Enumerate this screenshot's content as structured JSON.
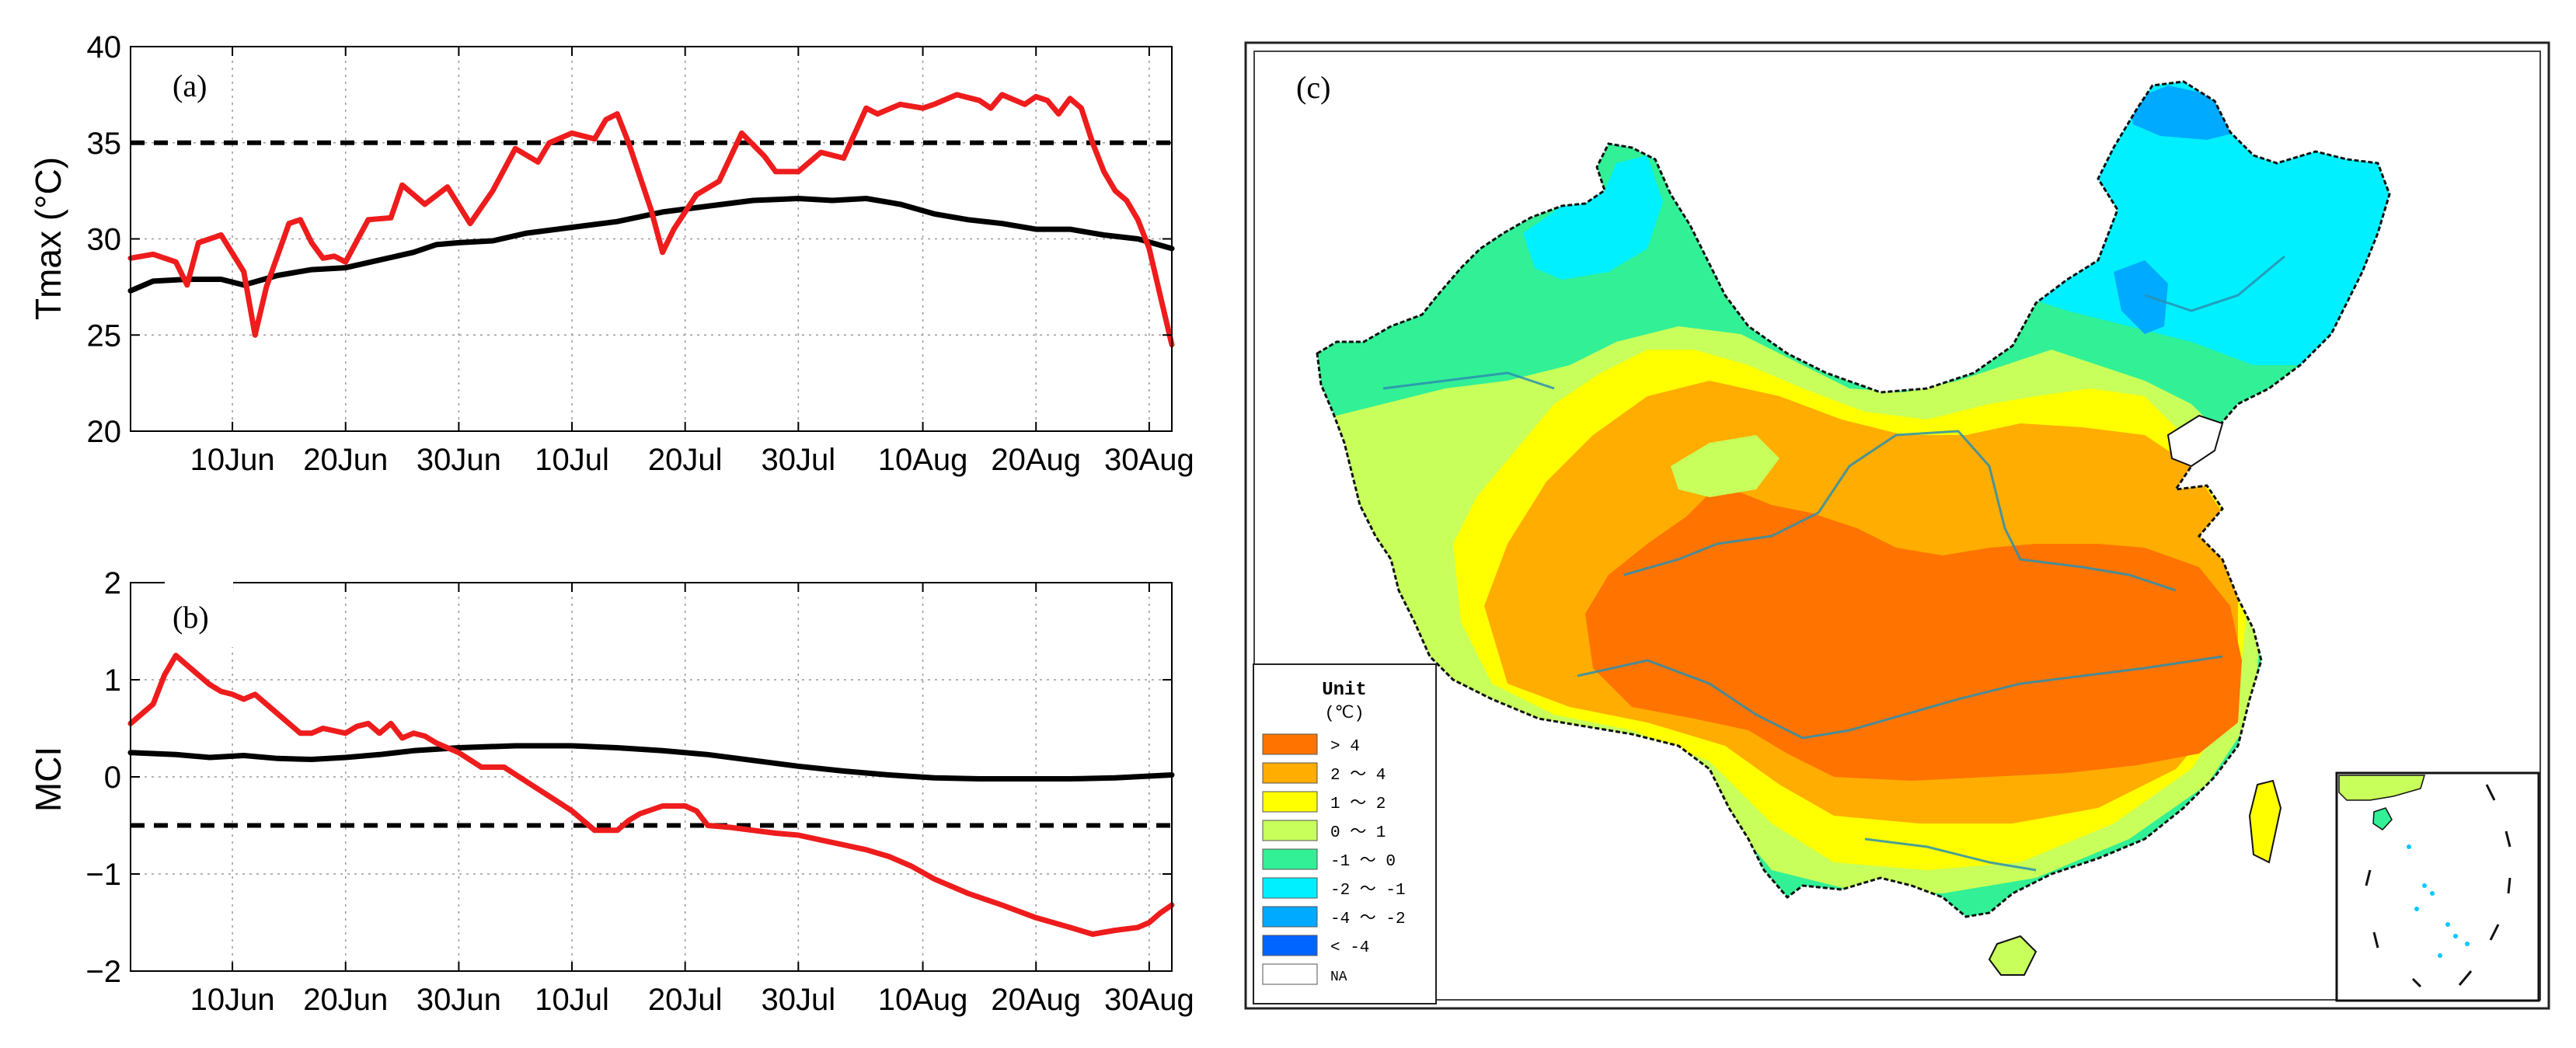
{
  "chart_data": [
    {
      "id": "a",
      "type": "line",
      "panel_label": "(a)",
      "ylabel": "Tmax (°C)",
      "ylim": [
        20,
        40
      ],
      "yticks": [
        "20",
        "25",
        "30",
        "35",
        "40"
      ],
      "xlim": [
        1,
        93
      ],
      "xticks": [
        {
          "x": 10,
          "label": "10Jun"
        },
        {
          "x": 20,
          "label": "20Jun"
        },
        {
          "x": 30,
          "label": "30Jun"
        },
        {
          "x": 40,
          "label": "10Jul"
        },
        {
          "x": 50,
          "label": "20Jul"
        },
        {
          "x": 60,
          "label": "30Jul"
        },
        {
          "x": 71,
          "label": "10Aug"
        },
        {
          "x": 81,
          "label": "20Aug"
        },
        {
          "x": 91,
          "label": "30Aug"
        }
      ],
      "threshold": 35,
      "series": [
        {
          "name": "Tmax daily",
          "color": "#ee1c1c",
          "x": [
            1,
            3,
            5,
            6,
            7,
            9,
            11,
            12,
            13,
            15,
            16,
            17,
            18,
            19,
            20,
            22,
            24,
            25,
            27,
            29,
            31,
            33,
            35,
            37,
            38,
            40,
            42,
            43,
            44,
            45,
            47,
            48,
            49,
            51,
            53,
            55,
            57,
            58,
            60,
            62,
            64,
            66,
            67,
            69,
            71,
            72,
            74,
            76,
            77,
            78,
            80,
            81,
            82,
            83,
            84,
            85,
            86,
            87,
            88,
            89,
            90,
            91,
            92,
            93
          ],
          "y": [
            29,
            29.2,
            28.8,
            27.6,
            29.8,
            30.2,
            28.3,
            25,
            27.5,
            30.8,
            31,
            29.8,
            29,
            29.1,
            28.8,
            31,
            31.1,
            32.8,
            31.8,
            32.7,
            30.8,
            32.5,
            34.7,
            34,
            35,
            35.5,
            35.2,
            36.2,
            36.5,
            35,
            31.5,
            29.3,
            30.5,
            32.3,
            33,
            35.5,
            34.3,
            33.5,
            33.5,
            34.5,
            34.2,
            36.8,
            36.5,
            37,
            36.8,
            37,
            37.5,
            37.2,
            36.8,
            37.5,
            37,
            37.4,
            37.2,
            36.5,
            37.3,
            36.8,
            35,
            33.5,
            32.5,
            32,
            31,
            29.5,
            27,
            24.5
          ]
        },
        {
          "name": "Climatology",
          "color": "#000000",
          "x": [
            1,
            3,
            6,
            9,
            11,
            14,
            17,
            20,
            23,
            26,
            28,
            30,
            33,
            36,
            40,
            44,
            48,
            52,
            56,
            60,
            63,
            66,
            69,
            72,
            75,
            78,
            81,
            84,
            87,
            90,
            93
          ],
          "y": [
            27.3,
            27.8,
            27.9,
            27.9,
            27.6,
            28.1,
            28.4,
            28.5,
            28.9,
            29.3,
            29.7,
            29.8,
            29.9,
            30.3,
            30.6,
            30.9,
            31.4,
            31.7,
            32,
            32.1,
            32,
            32.1,
            31.8,
            31.3,
            31,
            30.8,
            30.5,
            30.5,
            30.2,
            30,
            29.5
          ]
        }
      ]
    },
    {
      "id": "b",
      "type": "line",
      "panel_label": "(b)",
      "ylabel": "MCI",
      "ylim": [
        -2,
        2
      ],
      "yticks": [
        "−2",
        "−1",
        "0",
        "1",
        "2"
      ],
      "xlim": [
        1,
        93
      ],
      "xticks": [
        {
          "x": 10,
          "label": "10Jun"
        },
        {
          "x": 20,
          "label": "20Jun"
        },
        {
          "x": 30,
          "label": "30Jun"
        },
        {
          "x": 40,
          "label": "10Jul"
        },
        {
          "x": 50,
          "label": "20Jul"
        },
        {
          "x": 60,
          "label": "30Jul"
        },
        {
          "x": 71,
          "label": "10Aug"
        },
        {
          "x": 81,
          "label": "20Aug"
        },
        {
          "x": 91,
          "label": "30Aug"
        }
      ],
      "threshold": -0.5,
      "series": [
        {
          "name": "MCI daily",
          "color": "#ee1c1c",
          "x": [
            1,
            3,
            4,
            5,
            6,
            8,
            9,
            10,
            11,
            12,
            13,
            15,
            16,
            17,
            18,
            20,
            21,
            22,
            23,
            24,
            25,
            26,
            27,
            28,
            30,
            32,
            34,
            36,
            38,
            40,
            42,
            44,
            45,
            46,
            48,
            49,
            50,
            51,
            52,
            54,
            56,
            58,
            60,
            62,
            64,
            66,
            68,
            70,
            72,
            75,
            78,
            81,
            84,
            86,
            88,
            90,
            91,
            92,
            93
          ],
          "y": [
            0.55,
            0.75,
            1.05,
            1.25,
            1.15,
            0.95,
            0.88,
            0.85,
            0.8,
            0.85,
            0.75,
            0.55,
            0.45,
            0.45,
            0.5,
            0.45,
            0.52,
            0.55,
            0.45,
            0.55,
            0.4,
            0.45,
            0.42,
            0.35,
            0.25,
            0.1,
            0.1,
            -0.05,
            -0.2,
            -0.35,
            -0.55,
            -0.55,
            -0.45,
            -0.38,
            -0.3,
            -0.3,
            -0.3,
            -0.35,
            -0.5,
            -0.52,
            -0.55,
            -0.58,
            -0.6,
            -0.65,
            -0.7,
            -0.75,
            -0.82,
            -0.92,
            -1.05,
            -1.2,
            -1.32,
            -1.45,
            -1.55,
            -1.62,
            -1.58,
            -1.55,
            -1.5,
            -1.4,
            -1.32
          ]
        },
        {
          "name": "Climatology",
          "color": "#000000",
          "x": [
            1,
            5,
            8,
            11,
            14,
            17,
            20,
            23,
            26,
            30,
            35,
            40,
            44,
            48,
            52,
            56,
            60,
            64,
            68,
            72,
            76,
            80,
            84,
            88,
            93
          ],
          "y": [
            0.25,
            0.23,
            0.2,
            0.22,
            0.19,
            0.18,
            0.2,
            0.23,
            0.27,
            0.3,
            0.32,
            0.32,
            0.3,
            0.27,
            0.23,
            0.17,
            0.11,
            0.06,
            0.02,
            -0.01,
            -0.02,
            -0.02,
            -0.02,
            -0.01,
            0.02
          ]
        }
      ]
    },
    {
      "id": "c",
      "type": "heatmap",
      "panel_label": "(c)",
      "legend_title": "Unit",
      "legend_unit": "(℃)",
      "legend": [
        {
          "label": "> 4",
          "color": "#ff7300"
        },
        {
          "label": "2 ～ 4",
          "color": "#ffad00"
        },
        {
          "label": "1 ～ 2",
          "color": "#ffff00"
        },
        {
          "label": "0 ～ 1",
          "color": "#c8ff5a"
        },
        {
          "label": "-1 ～ 0",
          "color": "#32f096"
        },
        {
          "label": "-2 ～ -1",
          "color": "#00f0ff"
        },
        {
          "label": "-4 ～ -2",
          "color": "#00aaff"
        },
        {
          "label": "< -4",
          "color": "#0064ff"
        },
        {
          "label": "NA",
          "color": "#ffffff"
        }
      ]
    }
  ]
}
